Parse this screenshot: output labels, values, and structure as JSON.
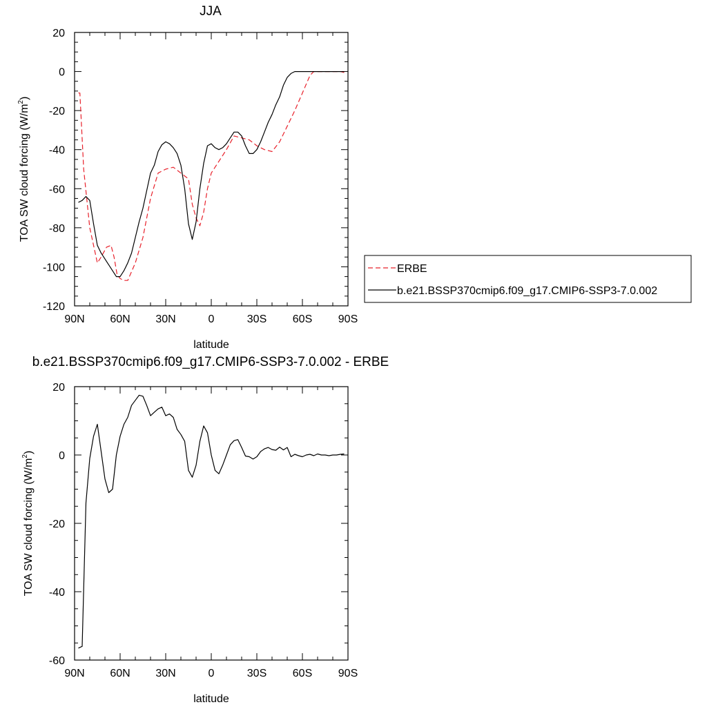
{
  "chart_data": [
    {
      "type": "line",
      "title": "JJA",
      "xlabel": "latitude",
      "ylabel_main": "TOA SW cloud forcing (W/m",
      "ylabel_sup": "2",
      "ylabel_end": ")",
      "xlim": [
        90,
        -90
      ],
      "ylim": [
        -120,
        20
      ],
      "x_ticks": [
        90,
        60,
        30,
        0,
        -30,
        -60,
        -90
      ],
      "x_tick_labels": [
        "90N",
        "60N",
        "30N",
        "0",
        "30S",
        "60S",
        "90S"
      ],
      "y_ticks": [
        20,
        0,
        -20,
        -40,
        -60,
        -80,
        -100,
        -120
      ],
      "y_tick_labels": [
        "20",
        "0",
        "-20",
        "-40",
        "-60",
        "-80",
        "-100",
        "-120"
      ],
      "legend_position": "right",
      "series": [
        {
          "name": "ERBE",
          "color": "#e8202a",
          "dash": "dashed",
          "x": [
            87.5,
            86.5,
            84,
            80,
            75,
            72.5,
            69,
            66,
            64,
            62,
            60,
            57.5,
            55,
            50,
            45,
            40,
            35,
            32.5,
            30,
            25,
            20,
            15,
            12.5,
            10,
            7.5,
            5,
            2.5,
            0,
            -5,
            -10,
            -15,
            -20,
            -25,
            -30,
            -35,
            -40,
            -45,
            -50,
            -55,
            -60,
            -65,
            -67.5,
            -70,
            -75,
            -80,
            -85,
            -87.5
          ],
          "y": [
            -11,
            -11,
            -50,
            -80,
            -98,
            -95,
            -90,
            -89,
            -95,
            -104,
            -106,
            -107,
            -107,
            -98,
            -85,
            -65,
            -52,
            -51,
            -50,
            -49,
            -52,
            -55,
            -68,
            -75,
            -79,
            -72,
            -60,
            -52,
            -46,
            -40,
            -33,
            -34,
            -35,
            -38,
            -40,
            -41,
            -36,
            -28,
            -20,
            -11,
            -2,
            0,
            0,
            0,
            0,
            0,
            -0.5
          ]
        },
        {
          "name": "b.e21.BSSP370cmip6.f09_g17.CMIP6-SSP3-7.0.002",
          "color": "#000000",
          "dash": "solid",
          "x": [
            87.5,
            85,
            82.5,
            80,
            77.5,
            75,
            72.5,
            70,
            67.5,
            65,
            62.5,
            60,
            57.5,
            55,
            52.5,
            50,
            47.5,
            45,
            42.5,
            40,
            37.5,
            35,
            32.5,
            30,
            27.5,
            25,
            22.5,
            20,
            17.5,
            15,
            12.5,
            10,
            7.5,
            5,
            2.5,
            0,
            -2.5,
            -5,
            -7.5,
            -10,
            -12.5,
            -15,
            -17.5,
            -20,
            -22.5,
            -25,
            -27.5,
            -30,
            -32.5,
            -35,
            -37.5,
            -40,
            -42.5,
            -45,
            -47.5,
            -50,
            -52.5,
            -55,
            -57.5,
            -60,
            -62.5,
            -65,
            -67.5,
            -70,
            -72.5,
            -75,
            -77.5,
            -80,
            -82.5,
            -85,
            -87.5
          ],
          "y": [
            -67,
            -66,
            -64,
            -66,
            -78,
            -89,
            -93,
            -96,
            -99,
            -102,
            -105,
            -105,
            -102,
            -98,
            -93,
            -85,
            -77,
            -70,
            -61,
            -52,
            -48,
            -41,
            -37.5,
            -36,
            -37,
            -39,
            -42,
            -48,
            -60,
            -78,
            -86,
            -77,
            -60,
            -47,
            -38,
            -37,
            -39,
            -40,
            -39,
            -37,
            -34,
            -31,
            -31,
            -33,
            -38,
            -42,
            -42,
            -40,
            -36,
            -31,
            -26,
            -22,
            -17,
            -13,
            -7,
            -3,
            -1,
            0,
            0,
            0,
            0,
            0,
            0,
            0,
            0,
            0,
            0,
            0,
            0,
            0,
            0
          ]
        }
      ]
    },
    {
      "type": "line",
      "title": "b.e21.BSSP370cmip6.f09_g17.CMIP6-SSP3-7.0.002 - ERBE",
      "xlabel": "latitude",
      "ylabel_main": "TOA SW cloud forcing (W/m",
      "ylabel_sup": "2",
      "ylabel_end": ")",
      "xlim": [
        90,
        -90
      ],
      "ylim": [
        -60,
        20
      ],
      "x_ticks": [
        90,
        60,
        30,
        0,
        -30,
        -60,
        -90
      ],
      "x_tick_labels": [
        "90N",
        "60N",
        "30N",
        "0",
        "30S",
        "60S",
        "90S"
      ],
      "y_ticks": [
        20,
        0,
        -20,
        -40,
        -60
      ],
      "y_tick_labels": [
        "20",
        "0",
        "-20",
        "-40",
        "-60"
      ],
      "series": [
        {
          "color": "#000000",
          "dash": "solid",
          "x": [
            87.5,
            85,
            82.5,
            80,
            77.5,
            75,
            72.5,
            70,
            67.5,
            65,
            62.5,
            60,
            57.5,
            55,
            52.5,
            50,
            47.5,
            45,
            42.5,
            40,
            37.5,
            35,
            32.5,
            30,
            27.5,
            25,
            22.5,
            20,
            17.5,
            15,
            12.5,
            10,
            7.5,
            5,
            2.5,
            0,
            -2.5,
            -5,
            -7.5,
            -10,
            -12.5,
            -15,
            -17.5,
            -20,
            -22.5,
            -25,
            -27.5,
            -30,
            -32.5,
            -35,
            -37.5,
            -40,
            -42.5,
            -45,
            -47.5,
            -50,
            -52.5,
            -55,
            -57.5,
            -60,
            -62.5,
            -65,
            -67.5,
            -70,
            -72.5,
            -75,
            -77.5,
            -80,
            -82.5,
            -85,
            -87.5
          ],
          "y": [
            -56.5,
            -56,
            -14,
            -1,
            5.5,
            9,
            1,
            -7,
            -11,
            -10,
            0,
            5.5,
            9,
            11,
            14.5,
            16,
            17.5,
            17.2,
            14.5,
            11.5,
            12.5,
            13.5,
            14,
            11.5,
            12,
            11,
            7.5,
            6,
            4,
            -4.5,
            -6.5,
            -3,
            4,
            8.5,
            6.5,
            0,
            -4.5,
            -5.5,
            -3,
            0,
            3,
            4.2,
            4.5,
            2.2,
            -0.3,
            -0.5,
            -1.2,
            -0.5,
            1,
            1.8,
            2.2,
            1.6,
            1.4,
            2.3,
            1.5,
            2.2,
            -0.5,
            0.2,
            -0.2,
            -0.5,
            0,
            0.2,
            -0.2,
            0.3,
            0,
            0,
            -0.2,
            0,
            0,
            0.2,
            0.3
          ]
        }
      ]
    }
  ]
}
